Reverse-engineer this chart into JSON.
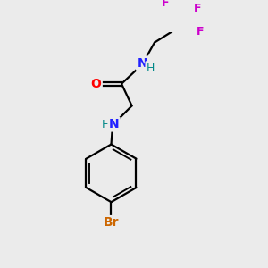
{
  "background_color": "#ebebeb",
  "atom_colors": {
    "C": "#000000",
    "N": "#2020ff",
    "O": "#ff0000",
    "F": "#cc00cc",
    "Br": "#cc6600",
    "H": "#008888"
  },
  "bond_color": "#000000",
  "figsize": [
    3.0,
    3.0
  ],
  "dpi": 100
}
